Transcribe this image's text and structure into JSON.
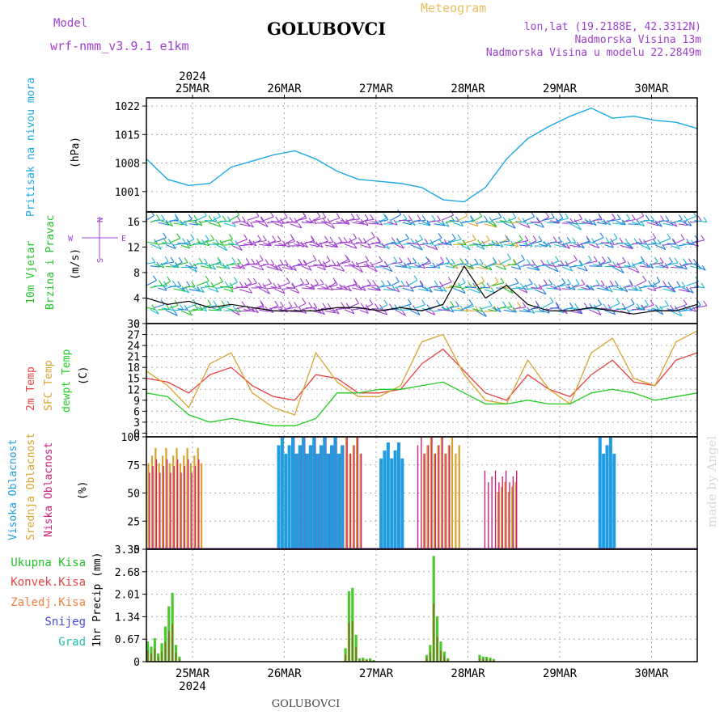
{
  "header": {
    "model_label": "Model",
    "model_name": "wrf-nmm_v3.9.1 e1km",
    "station": "GOLUBOVCI",
    "product": "Meteogram",
    "lonlat": "lon,lat (19.2188E, 42.3312N)",
    "elevation": "Nadmorska Visina 13m",
    "model_elevation": "Nadmorska Visina u modelu 22.2849m",
    "footer_station": "GOLUBOVCI",
    "credit": "made by Angel"
  },
  "colors": {
    "pressure": "#1aa7e6",
    "wind_label": "#22c42a",
    "temp2m": "#e84040",
    "sfc": "#d9a430",
    "dewpt": "#22cc22",
    "high_cloud": "#1f9de0",
    "mid_cloud": "#d8a22c",
    "low_cloud": "#d0207a",
    "precip": "#4ec82f",
    "precip_conv": "#8a6a1f",
    "purple": "#a040d0"
  },
  "time_axis": {
    "year": "2024",
    "days": [
      "25MAR",
      "26MAR",
      "27MAR",
      "28MAR",
      "29MAR",
      "30MAR"
    ]
  },
  "panels": {
    "pressure": {
      "label": "Pritisak na nivou mora",
      "unit": "(hPa)"
    },
    "wind": {
      "label1": "10m Vjetar",
      "label2": "Brzina i Pravac",
      "unit": "(m/s)",
      "compass_n": "N",
      "compass_s": "S",
      "compass_w": "W",
      "compass_e": "E"
    },
    "temp": {
      "label1": "2m Temp",
      "label2": "SFC Temp",
      "label3": "dewpt Temp",
      "unit": "(C)"
    },
    "cloud": {
      "label1": "Visoka Oblacnost",
      "label2": "Srednja Oblacnost",
      "label3": "Niska Oblacnost",
      "unit": "(%)"
    },
    "precip": {
      "label_total": "Ukupna Kisa",
      "label_conv": "Konvek.Kisa",
      "label_frz": "Zaledj.Kisa",
      "label_snow": "Snijeg",
      "label_hail": "Grad",
      "unit": "1hr Precip (mm)"
    }
  },
  "chart_data": [
    {
      "type": "line",
      "name": "pressure",
      "ylabel": "(hPa)",
      "yticks": [
        "1022",
        "1015",
        "1008",
        "1001"
      ],
      "ylim": [
        996,
        1024
      ],
      "x_hours": [
        0,
        6,
        12,
        18,
        24,
        30,
        36,
        42,
        48,
        54,
        60,
        66,
        72,
        78,
        84,
        90,
        96,
        102,
        108,
        114,
        120,
        126,
        132,
        138,
        144,
        150,
        156
      ],
      "values": [
        1009,
        1004,
        1002.5,
        1003,
        1007,
        1008.5,
        1010,
        1011,
        1009,
        1006,
        1004,
        1003.5,
        1003,
        1002,
        999,
        998.5,
        1002,
        1009,
        1014,
        1017,
        1019.5,
        1021.5,
        1019,
        1019.5,
        1018.5,
        1018,
        1016.5
      ]
    },
    {
      "type": "line",
      "name": "wind_speed",
      "ylabel": "(m/s)",
      "yticks": [
        "16",
        "12",
        "8",
        "4",
        "0"
      ],
      "ylim": [
        0,
        17.5
      ],
      "x_hours": [
        0,
        6,
        12,
        18,
        24,
        30,
        36,
        42,
        48,
        54,
        60,
        66,
        72,
        78,
        84,
        90,
        96,
        102,
        108,
        114,
        120,
        126,
        132,
        138,
        144,
        150,
        156
      ],
      "values": [
        4,
        3,
        3.5,
        2.5,
        3,
        2.5,
        2,
        2,
        2,
        2.5,
        2.5,
        2,
        2.5,
        2,
        3,
        9,
        4,
        6,
        3,
        2,
        2,
        2.5,
        2,
        1.5,
        2,
        2,
        3
      ]
    },
    {
      "type": "line",
      "name": "temperature",
      "ylabel": "(C)",
      "yticks": [
        "30",
        "27",
        "24",
        "21",
        "18",
        "15",
        "12",
        "9",
        "6",
        "3",
        "0"
      ],
      "ylim": [
        -1,
        30
      ],
      "x_hours": [
        0,
        6,
        12,
        18,
        24,
        30,
        36,
        42,
        48,
        54,
        60,
        66,
        72,
        78,
        84,
        90,
        96,
        102,
        108,
        114,
        120,
        126,
        132,
        138,
        144,
        150,
        156
      ],
      "series": [
        {
          "name": "2m Temp",
          "values": [
            15,
            14,
            11,
            16,
            18,
            13,
            10,
            9,
            16,
            15,
            11,
            11,
            12,
            19,
            23,
            17,
            11,
            9,
            16,
            12,
            10,
            16,
            20,
            14,
            13,
            20,
            22
          ]
        },
        {
          "name": "SFC Temp",
          "values": [
            17,
            13,
            7,
            19,
            22,
            11,
            7,
            5,
            22,
            14,
            10,
            10,
            13,
            25,
            27,
            16,
            9,
            8,
            20,
            12,
            8,
            22,
            26,
            15,
            13,
            25,
            28
          ]
        },
        {
          "name": "dewpt Temp",
          "values": [
            11,
            10,
            5,
            3,
            4,
            3,
            2,
            2,
            4,
            11,
            11,
            12,
            12,
            13,
            14,
            11,
            8,
            8,
            9,
            8,
            8,
            11,
            12,
            11,
            9,
            10,
            11
          ]
        }
      ]
    },
    {
      "type": "bar",
      "name": "cloud_cover",
      "ylabel": "(%)",
      "yticks": [
        "100",
        "75",
        "50",
        "25",
        "0"
      ],
      "ylim": [
        0,
        100
      ],
      "series": [
        {
          "name": "Visoka Oblacnost",
          "segments": [
            [
              37,
              55,
              100
            ],
            [
              66,
              72,
              95
            ],
            [
              128,
              132,
              100
            ]
          ]
        },
        {
          "name": "Srednja Oblacnost",
          "segments": [
            [
              0,
              15,
              90
            ],
            [
              40,
              60,
              100
            ],
            [
              78,
              88,
              100
            ],
            [
              99,
              104,
              60
            ]
          ]
        },
        {
          "name": "Niska Oblacnost",
          "segments": [
            [
              0,
              14,
              80
            ],
            [
              41,
              60,
              100
            ],
            [
              76,
              85,
              100
            ],
            [
              95,
              104,
              70
            ]
          ]
        }
      ]
    },
    {
      "type": "bar",
      "name": "precipitation",
      "ylabel": "1hr Precip (mm)",
      "yticks": [
        "3.35",
        "2.68",
        "2.01",
        "1.34",
        "0.67",
        "0"
      ],
      "ylim": [
        0,
        3.35
      ],
      "x_hours": [
        0,
        1,
        2,
        3,
        4,
        5,
        6,
        7,
        8,
        9,
        56,
        57,
        58,
        59,
        60,
        61,
        62,
        63,
        64,
        79,
        80,
        81,
        82,
        83,
        84,
        85,
        94,
        95,
        96,
        97,
        98
      ],
      "values": [
        0.6,
        0.45,
        0.7,
        0.25,
        0.55,
        1.05,
        1.65,
        2.05,
        0.5,
        0.15,
        0.4,
        2.1,
        2.2,
        0.8,
        0.1,
        0.12,
        0.08,
        0.1,
        0.05,
        0.2,
        0.5,
        3.15,
        1.35,
        0.6,
        0.3,
        0.1,
        0.2,
        0.15,
        0.15,
        0.12,
        0.08
      ]
    }
  ]
}
